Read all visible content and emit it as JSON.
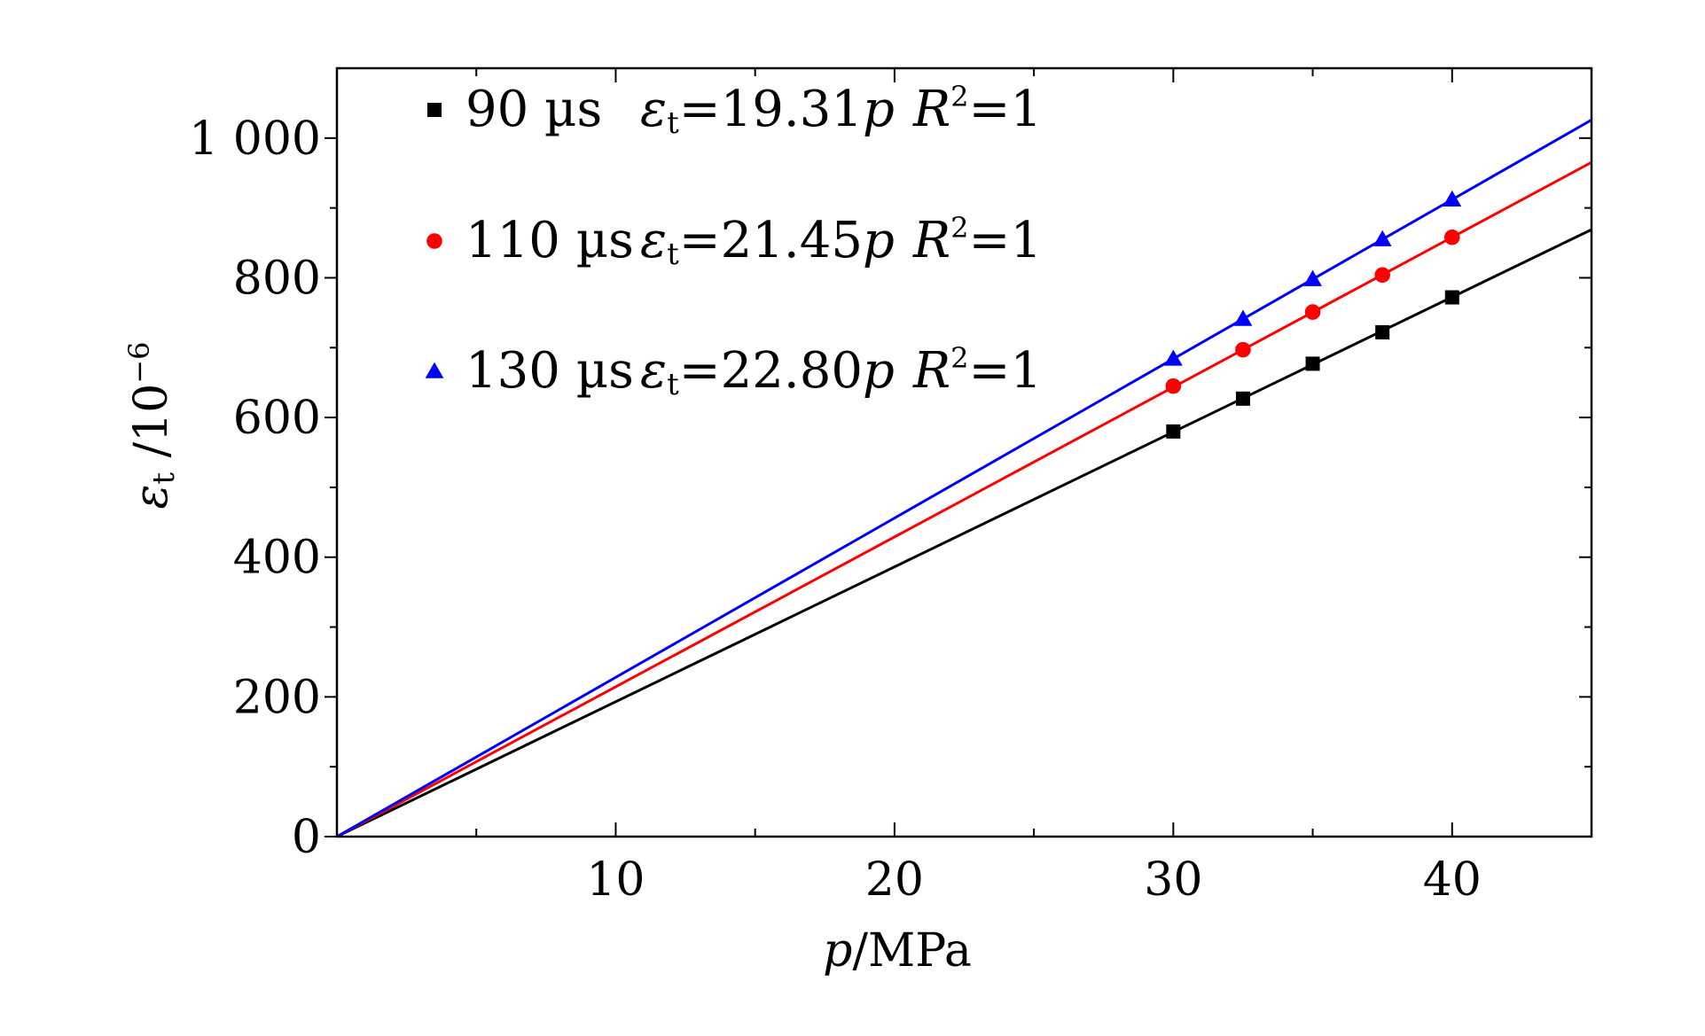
{
  "chart_data": {
    "type": "scatter",
    "xlabel": {
      "var": "p",
      "unit": "/MPa"
    },
    "ylabel": {
      "sym": "ε",
      "sub": "t",
      "text": " /10",
      "sup": "−6"
    },
    "xlim": [
      0,
      45
    ],
    "ylim": [
      0,
      1100
    ],
    "x_ticks": [
      10,
      20,
      30,
      40
    ],
    "x_tick_labels": [
      "10",
      "20",
      "30",
      "40"
    ],
    "x_minor_ticks": [
      5,
      15,
      25,
      35
    ],
    "y_ticks": [
      0,
      200,
      400,
      600,
      800,
      1000
    ],
    "y_tick_labels": [
      "0",
      "200",
      "400",
      "600",
      "800",
      "1 000"
    ],
    "y_minor_ticks": [
      100,
      300,
      500,
      700,
      900
    ],
    "grid": false,
    "legend_position": "top-left",
    "series": [
      {
        "name": "90 µs",
        "fit": {
          "sym": "ε",
          "sub": "t",
          "eq": "=19.31",
          "var": "p"
        },
        "r2": {
          "sym": "R",
          "sup": "2",
          "eq": "=1"
        },
        "slope": 19.31,
        "color": "#000000",
        "marker": "square",
        "x": [
          30,
          32.5,
          35,
          37.5,
          40
        ],
        "y": [
          580,
          627,
          677,
          722,
          772
        ]
      },
      {
        "name": "110 µs",
        "fit": {
          "sym": "ε",
          "sub": "t",
          "eq": "=21.45",
          "var": "p"
        },
        "r2": {
          "sym": "R",
          "sup": "2",
          "eq": "=1"
        },
        "slope": 21.45,
        "color": "#ff0000",
        "marker": "circle",
        "x": [
          30,
          32.5,
          35,
          37.5,
          40
        ],
        "y": [
          645,
          697,
          751,
          804,
          858
        ]
      },
      {
        "name": "130 µs",
        "fit": {
          "sym": "ε",
          "sub": "t",
          "eq": "=22.80",
          "var": "p"
        },
        "r2": {
          "sym": "R",
          "sup": "2",
          "eq": "=1"
        },
        "slope": 22.8,
        "color": "#0000ff",
        "marker": "triangle",
        "x": [
          30,
          32.5,
          35,
          37.5,
          40
        ],
        "y": [
          684,
          741,
          798,
          855,
          912
        ]
      }
    ]
  }
}
